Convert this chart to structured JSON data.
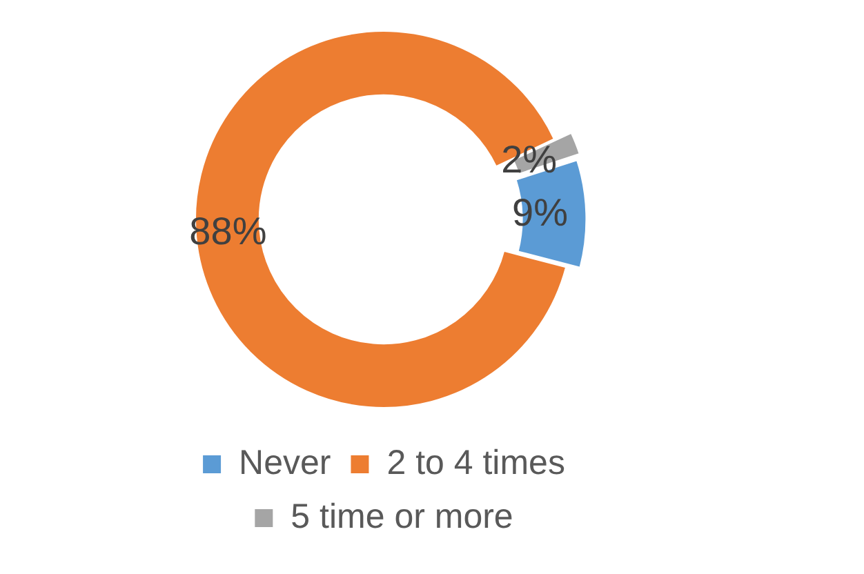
{
  "chart_data": {
    "type": "donut",
    "categories": [
      "Never",
      "2 to 4 times",
      "5 time or more"
    ],
    "values": [
      9,
      88,
      2
    ],
    "colors": [
      "#5b9bd5",
      "#ed7d31",
      "#a5a5a5"
    ],
    "value_labels": [
      "9%",
      "88%",
      "2%"
    ],
    "legend": "bottom"
  }
}
